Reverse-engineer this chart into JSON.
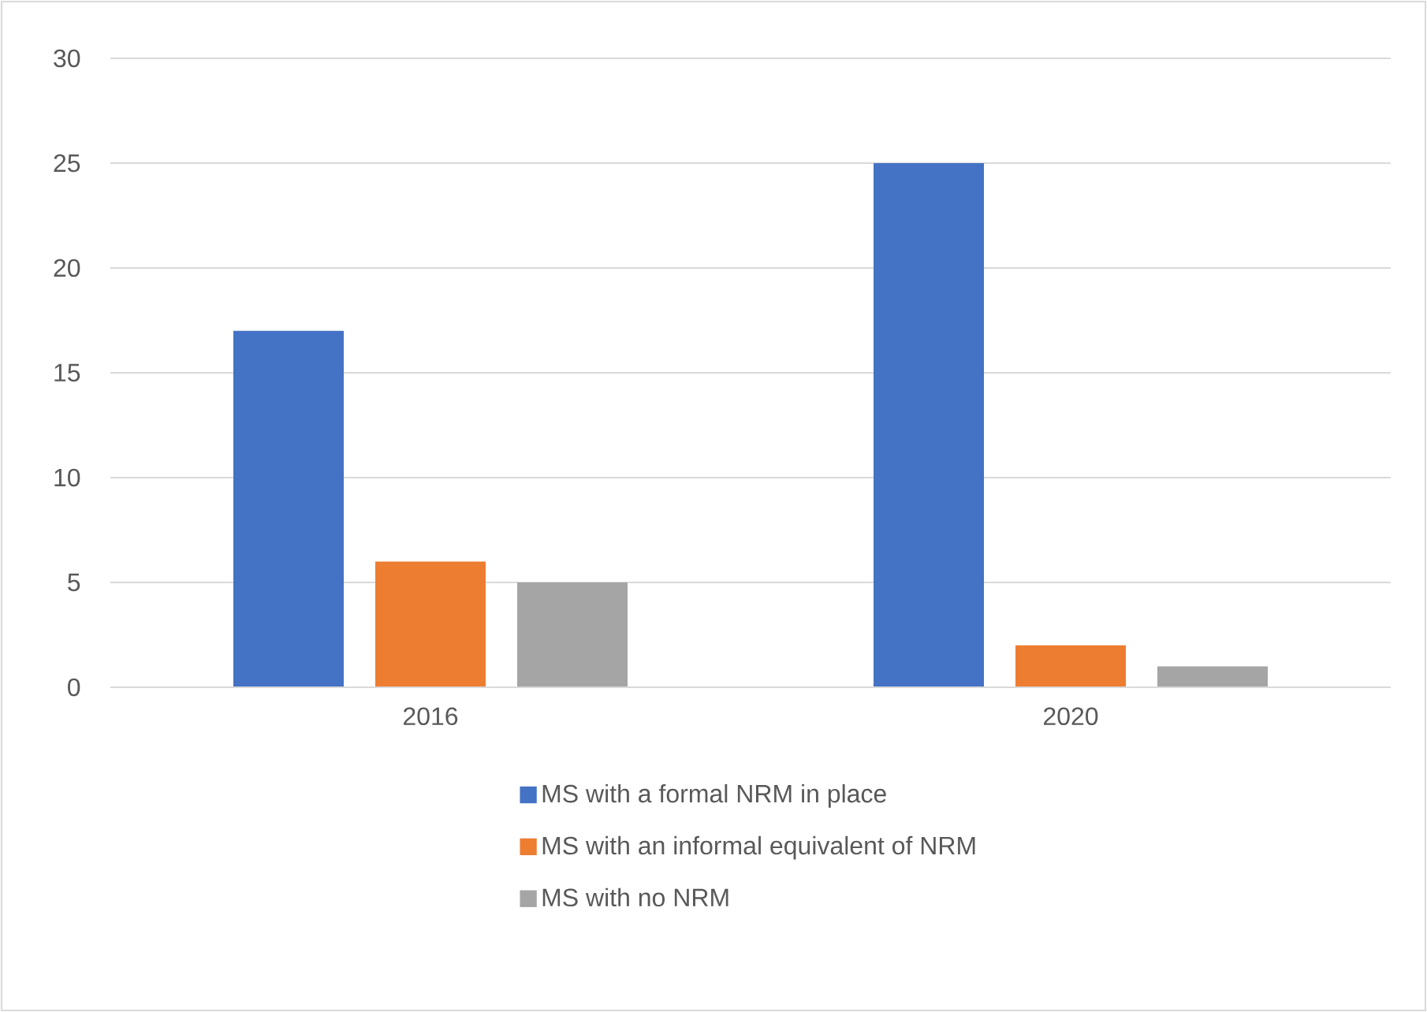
{
  "chart_data": {
    "type": "bar",
    "categories": [
      "2016",
      "2020"
    ],
    "series": [
      {
        "name": "MS with a formal NRM in place",
        "color": "#4472c4",
        "values": [
          17,
          25
        ]
      },
      {
        "name": "MS with an informal equivalent of NRM",
        "color": "#ed7d31",
        "values": [
          6,
          2
        ]
      },
      {
        "name": "MS with no NRM",
        "color": "#a5a5a5",
        "values": [
          5,
          1
        ]
      }
    ],
    "ylim": [
      0,
      30
    ],
    "yticks": [
      0,
      5,
      10,
      15,
      20,
      25,
      30
    ],
    "grid": "y",
    "legend": "bottom"
  }
}
